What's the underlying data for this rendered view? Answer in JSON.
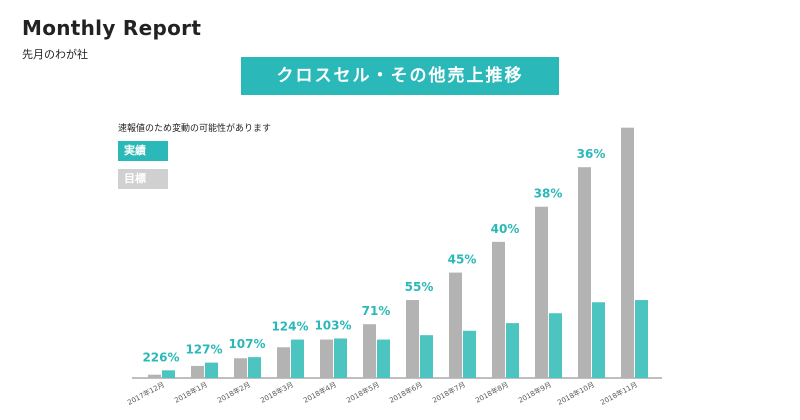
{
  "header": {
    "title": "Monthly Report",
    "subtitle": "先月のわが社"
  },
  "chart_data": {
    "type": "bar",
    "title": "クロスセル・その他売上推移",
    "note": "速報値のため変動の可能性があります",
    "legend": [
      {
        "name": "実績",
        "color": "#2bb8b8"
      },
      {
        "name": "目標",
        "color": "#b3b3b3"
      }
    ],
    "legend_placement": "top-left",
    "categories": [
      "2017年12月",
      "2018年1月",
      "2018年2月",
      "2018年3月",
      "2018年4月",
      "2018年5月",
      "2018年6月",
      "2018年7月",
      "2018年8月",
      "2018年9月",
      "2018年10月",
      "2018年11月"
    ],
    "series": [
      {
        "name": "目標",
        "color": "#b3b3b3",
        "values": [
          3,
          11,
          18,
          28,
          35,
          49,
          71,
          96,
          124,
          156,
          192,
          228
        ]
      },
      {
        "name": "実績",
        "color": "#4cc4c0",
        "values": [
          7,
          14,
          19,
          35,
          36,
          35,
          39,
          43,
          50,
          59,
          69,
          71
        ]
      }
    ],
    "achievement_labels": [
      "226%",
      "127%",
      "107%",
      "124%",
      "103%",
      "71%",
      "55%",
      "45%",
      "40%",
      "38%",
      "36%",
      ""
    ],
    "ylim": [
      0,
      235
    ],
    "grid": false
  }
}
